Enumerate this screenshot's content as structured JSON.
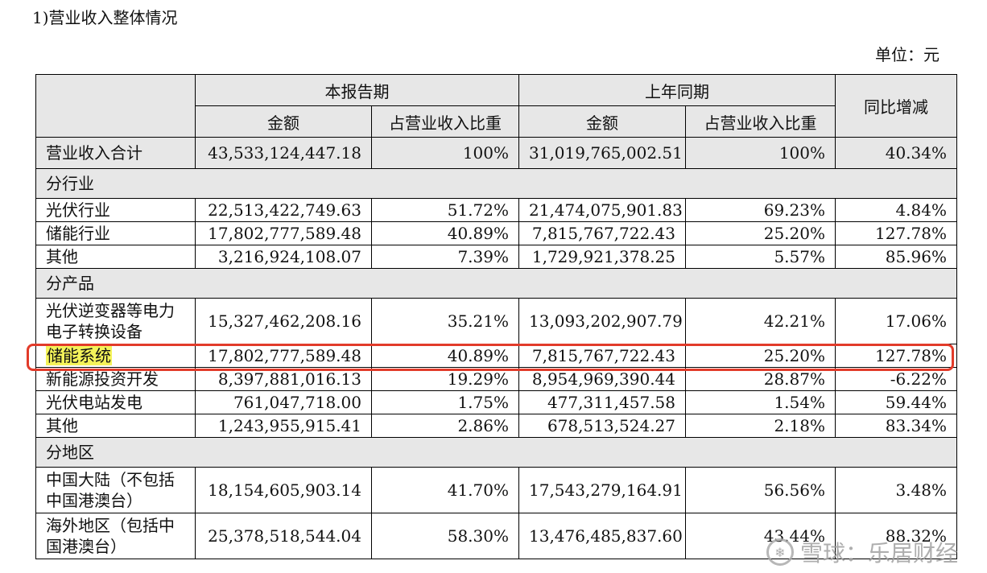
{
  "title": "1)营业收入整体情况",
  "unit": "单位：元",
  "headers": {
    "current_period": "本报告期",
    "prior_period": "上年同期",
    "yoy": "同比增减",
    "amount": "金额",
    "share": "占营业收入比重"
  },
  "total": {
    "label": "营业收入合计",
    "cur_amount": "43,533,124,447.18",
    "cur_share": "100%",
    "prev_amount": "31,019,765,002.51",
    "prev_share": "100%",
    "yoy": "40.34%"
  },
  "sections": {
    "industry": "分行业",
    "product": "分产品",
    "region": "分地区"
  },
  "industry_rows": [
    {
      "label": "光伏行业",
      "cur_amount": "22,513,422,749.63",
      "cur_share": "51.72%",
      "prev_amount": "21,474,075,901.83",
      "prev_share": "69.23%",
      "yoy": "4.84%"
    },
    {
      "label": "储能行业",
      "cur_amount": "17,802,777,589.48",
      "cur_share": "40.89%",
      "prev_amount": "7,815,767,722.43",
      "prev_share": "25.20%",
      "yoy": "127.78%"
    },
    {
      "label": "其他",
      "cur_amount": "3,216,924,108.07",
      "cur_share": "7.39%",
      "prev_amount": "1,729,921,378.25",
      "prev_share": "5.57%",
      "yoy": "85.96%"
    }
  ],
  "product_rows": [
    {
      "label": "光伏逆变器等电力电子转换设备",
      "cur_amount": "15,327,462,208.16",
      "cur_share": "35.21%",
      "prev_amount": "13,093,202,907.79",
      "prev_share": "42.21%",
      "yoy": "17.06%"
    },
    {
      "label": "储能系统",
      "cur_amount": "17,802,777,589.48",
      "cur_share": "40.89%",
      "prev_amount": "7,815,767,722.43",
      "prev_share": "25.20%",
      "yoy": "127.78%"
    },
    {
      "label": "新能源投资开发",
      "cur_amount": "8,397,881,016.13",
      "cur_share": "19.29%",
      "prev_amount": "8,954,969,390.44",
      "prev_share": "28.87%",
      "yoy": "-6.22%"
    },
    {
      "label": "光伏电站发电",
      "cur_amount": "761,047,718.00",
      "cur_share": "1.75%",
      "prev_amount": "477,311,457.58",
      "prev_share": "1.54%",
      "yoy": "59.44%"
    },
    {
      "label": "其他",
      "cur_amount": "1,243,955,915.41",
      "cur_share": "2.86%",
      "prev_amount": "678,513,524.27",
      "prev_share": "2.18%",
      "yoy": "83.34%"
    }
  ],
  "region_rows": [
    {
      "label": "中国大陆（不包括中国港澳台）",
      "cur_amount": "18,154,605,903.14",
      "cur_share": "41.70%",
      "prev_amount": "17,543,279,164.91",
      "prev_share": "56.56%",
      "yoy": "3.48%"
    },
    {
      "label": "海外地区（包括中国港澳台）",
      "cur_amount": "25,378,518,544.04",
      "cur_share": "58.30%",
      "prev_amount": "13,476,485,837.60",
      "prev_share": "43.44%",
      "yoy": "88.32%"
    }
  ],
  "watermark": "雪球：乐居财经",
  "watermark_logo": "snowball-logo-icon"
}
